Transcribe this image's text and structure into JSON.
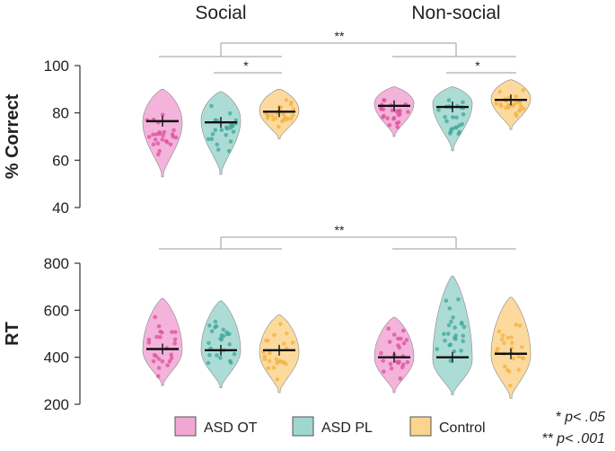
{
  "chart_data": [
    {
      "type": "violin",
      "panel": "top",
      "ylabel": "% Correct",
      "ylim": [
        40,
        100
      ],
      "yticks": [
        40,
        60,
        80,
        100
      ],
      "conditions": [
        "Social",
        "Non-social"
      ],
      "groups": [
        "ASD OT",
        "ASD PL",
        "Control"
      ],
      "violins": [
        {
          "condition": "Social",
          "group": "ASD OT",
          "median": 76.5,
          "min": 53,
          "max": 90,
          "peak": 76
        },
        {
          "condition": "Social",
          "group": "ASD PL",
          "median": 76,
          "min": 54,
          "max": 89,
          "peak": 77
        },
        {
          "condition": "Social",
          "group": "Control",
          "median": 80.5,
          "min": 69,
          "max": 90,
          "peak": 81
        },
        {
          "condition": "Non-social",
          "group": "ASD OT",
          "median": 83,
          "min": 70,
          "max": 91,
          "peak": 84
        },
        {
          "condition": "Non-social",
          "group": "ASD PL",
          "median": 82.5,
          "min": 64,
          "max": 91,
          "peak": 84
        },
        {
          "condition": "Non-social",
          "group": "Control",
          "median": 85.5,
          "min": 73,
          "max": 94,
          "peak": 86
        }
      ],
      "comparisons": [
        {
          "label": "**",
          "between": [
            "Social",
            "Non-social"
          ]
        },
        {
          "label": "*",
          "condition": "Social",
          "between": [
            "ASD PL",
            "Control"
          ]
        },
        {
          "label": "*",
          "condition": "Non-social",
          "between": [
            "ASD PL",
            "Control"
          ]
        }
      ]
    },
    {
      "type": "violin",
      "panel": "bottom",
      "ylabel": "RT",
      "ylim": [
        200,
        800
      ],
      "yticks": [
        200,
        400,
        600,
        800
      ],
      "conditions": [
        "Social",
        "Non-social"
      ],
      "groups": [
        "ASD OT",
        "ASD PL",
        "Control"
      ],
      "violins": [
        {
          "condition": "Social",
          "group": "ASD OT",
          "median": 435,
          "min": 280,
          "max": 650,
          "peak": 430
        },
        {
          "condition": "Social",
          "group": "ASD PL",
          "median": 430,
          "min": 270,
          "max": 640,
          "peak": 430
        },
        {
          "condition": "Social",
          "group": "Control",
          "median": 430,
          "min": 250,
          "max": 580,
          "peak": 420
        },
        {
          "condition": "Non-social",
          "group": "ASD OT",
          "median": 400,
          "min": 250,
          "max": 570,
          "peak": 400
        },
        {
          "condition": "Non-social",
          "group": "ASD PL",
          "median": 400,
          "min": 240,
          "max": 745,
          "peak": 390
        },
        {
          "condition": "Non-social",
          "group": "Control",
          "median": 415,
          "min": 225,
          "max": 655,
          "peak": 410
        }
      ],
      "comparisons": [
        {
          "label": "**",
          "between": [
            "Social",
            "Non-social"
          ]
        }
      ]
    }
  ],
  "legend": [
    {
      "label": "ASD OT",
      "color": "#f2a6d3"
    },
    {
      "label": "ASD PL",
      "color": "#9fd6cf"
    },
    {
      "label": "Control",
      "color": "#fbd48d"
    }
  ],
  "dot_colors": {
    "ASD OT": "#dd4f9d",
    "ASD PL": "#3ea79a",
    "Control": "#f3b23f"
  },
  "significance_notes": [
    "* p< .05",
    "** p< .001"
  ]
}
